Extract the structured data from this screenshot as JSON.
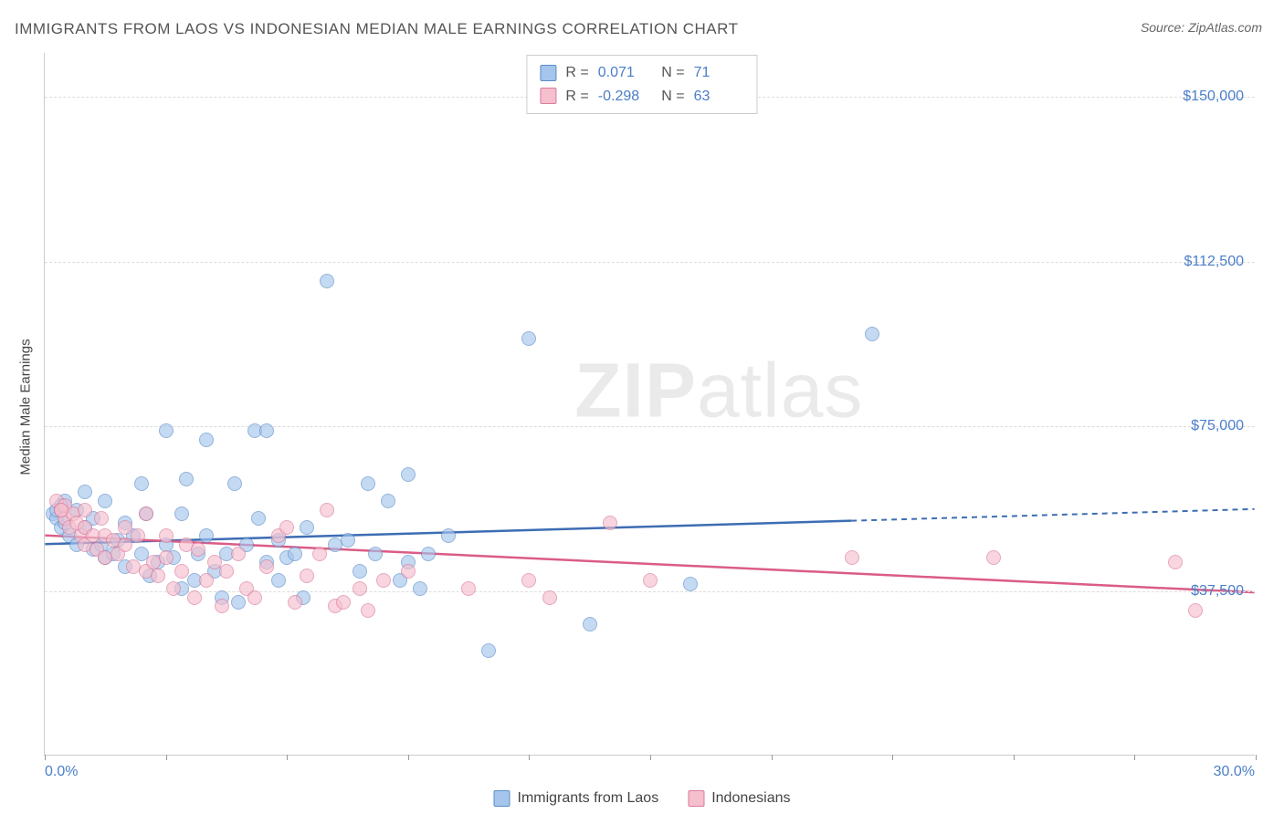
{
  "title": "IMMIGRANTS FROM LAOS VS INDONESIAN MEDIAN MALE EARNINGS CORRELATION CHART",
  "source": "Source: ZipAtlas.com",
  "watermark": {
    "part1": "ZIP",
    "part2": "atlas"
  },
  "chart": {
    "type": "scatter",
    "ylabel": "Median Male Earnings",
    "xlim": [
      0,
      30
    ],
    "ylim": [
      0,
      160000
    ],
    "x_axis_labels": {
      "min": "0.0%",
      "max": "30.0%"
    },
    "y_gridlines": [
      {
        "value": 37500,
        "label": "$37,500"
      },
      {
        "value": 75000,
        "label": "$75,000"
      },
      {
        "value": 112500,
        "label": "$112,500"
      },
      {
        "value": 150000,
        "label": "$150,000"
      }
    ],
    "x_ticks_pct": [
      0,
      3,
      6,
      9,
      12,
      15,
      18,
      21,
      24,
      27,
      30
    ],
    "colors": {
      "blue_fill": "#a5c5ec",
      "blue_stroke": "#5c8cc9",
      "pink_fill": "#f5bfce",
      "pink_stroke": "#db7a9a",
      "grid": "#dddddd",
      "axis": "#cccccc",
      "label_blue": "#4a7ec9",
      "text": "#555555",
      "trend_blue": "#3d6db3",
      "trend_pink": "#db5c86"
    },
    "series": [
      {
        "name": "Immigrants from Laos",
        "color_key": "blue",
        "R": "0.071",
        "N": "71",
        "trend": {
          "y_at_x0": 48000,
          "y_at_x30": 56000,
          "solid_until_x": 20
        },
        "points": [
          [
            0.2,
            55000
          ],
          [
            0.3,
            54000
          ],
          [
            0.4,
            52000
          ],
          [
            0.5,
            58000
          ],
          [
            0.5,
            53000
          ],
          [
            0.6,
            50000
          ],
          [
            0.8,
            56000
          ],
          [
            0.8,
            48000
          ],
          [
            1.0,
            60000
          ],
          [
            1.0,
            52000
          ],
          [
            1.2,
            47000
          ],
          [
            1.2,
            54000
          ],
          [
            1.4,
            48000
          ],
          [
            1.5,
            58000
          ],
          [
            1.5,
            45000
          ],
          [
            1.7,
            46000
          ],
          [
            1.8,
            49000
          ],
          [
            2.0,
            43000
          ],
          [
            2.0,
            53000
          ],
          [
            2.2,
            50000
          ],
          [
            2.4,
            46000
          ],
          [
            2.4,
            62000
          ],
          [
            2.5,
            55000
          ],
          [
            2.6,
            41000
          ],
          [
            2.8,
            44000
          ],
          [
            3.0,
            48000
          ],
          [
            3.0,
            74000
          ],
          [
            3.2,
            45000
          ],
          [
            3.4,
            55000
          ],
          [
            3.4,
            38000
          ],
          [
            3.5,
            63000
          ],
          [
            3.7,
            40000
          ],
          [
            3.8,
            46000
          ],
          [
            4.0,
            50000
          ],
          [
            4.0,
            72000
          ],
          [
            4.2,
            42000
          ],
          [
            4.4,
            36000
          ],
          [
            4.5,
            46000
          ],
          [
            4.7,
            62000
          ],
          [
            4.8,
            35000
          ],
          [
            5.0,
            48000
          ],
          [
            5.2,
            74000
          ],
          [
            5.3,
            54000
          ],
          [
            5.5,
            44000
          ],
          [
            5.5,
            74000
          ],
          [
            5.8,
            40000
          ],
          [
            5.8,
            49000
          ],
          [
            6.0,
            45000
          ],
          [
            6.2,
            46000
          ],
          [
            6.4,
            36000
          ],
          [
            6.5,
            52000
          ],
          [
            7.0,
            108000
          ],
          [
            7.2,
            48000
          ],
          [
            7.5,
            49000
          ],
          [
            7.8,
            42000
          ],
          [
            8.0,
            62000
          ],
          [
            8.2,
            46000
          ],
          [
            8.5,
            58000
          ],
          [
            8.8,
            40000
          ],
          [
            9.0,
            64000
          ],
          [
            9.0,
            44000
          ],
          [
            9.3,
            38000
          ],
          [
            9.5,
            46000
          ],
          [
            10.0,
            50000
          ],
          [
            11.0,
            24000
          ],
          [
            12.0,
            95000
          ],
          [
            13.5,
            30000
          ],
          [
            16.0,
            39000
          ],
          [
            20.5,
            96000
          ],
          [
            0.3,
            56000
          ],
          [
            0.4,
            57000
          ]
        ]
      },
      {
        "name": "Indonesians",
        "color_key": "pink",
        "R": "-0.298",
        "N": "63",
        "trend": {
          "y_at_x0": 50000,
          "y_at_x30": 37000,
          "solid_until_x": 30
        },
        "points": [
          [
            0.3,
            58000
          ],
          [
            0.4,
            56000
          ],
          [
            0.5,
            54000
          ],
          [
            0.5,
            57000
          ],
          [
            0.6,
            52000
          ],
          [
            0.7,
            55000
          ],
          [
            0.8,
            53000
          ],
          [
            0.9,
            50000
          ],
          [
            1.0,
            56000
          ],
          [
            1.0,
            52000
          ],
          [
            1.0,
            48000
          ],
          [
            1.2,
            50000
          ],
          [
            1.3,
            47000
          ],
          [
            1.4,
            54000
          ],
          [
            1.5,
            50000
          ],
          [
            1.5,
            45000
          ],
          [
            1.7,
            49000
          ],
          [
            1.8,
            46000
          ],
          [
            2.0,
            48000
          ],
          [
            2.0,
            52000
          ],
          [
            2.2,
            43000
          ],
          [
            2.3,
            50000
          ],
          [
            2.5,
            42000
          ],
          [
            2.5,
            55000
          ],
          [
            2.7,
            44000
          ],
          [
            2.8,
            41000
          ],
          [
            3.0,
            45000
          ],
          [
            3.0,
            50000
          ],
          [
            3.2,
            38000
          ],
          [
            3.4,
            42000
          ],
          [
            3.5,
            48000
          ],
          [
            3.7,
            36000
          ],
          [
            3.8,
            47000
          ],
          [
            4.0,
            40000
          ],
          [
            4.2,
            44000
          ],
          [
            4.4,
            34000
          ],
          [
            4.5,
            42000
          ],
          [
            4.8,
            46000
          ],
          [
            5.0,
            38000
          ],
          [
            5.2,
            36000
          ],
          [
            5.5,
            43000
          ],
          [
            5.8,
            50000
          ],
          [
            6.0,
            52000
          ],
          [
            6.2,
            35000
          ],
          [
            6.5,
            41000
          ],
          [
            6.8,
            46000
          ],
          [
            7.0,
            56000
          ],
          [
            7.2,
            34000
          ],
          [
            7.4,
            35000
          ],
          [
            7.8,
            38000
          ],
          [
            8.0,
            33000
          ],
          [
            8.4,
            40000
          ],
          [
            9.0,
            42000
          ],
          [
            10.5,
            38000
          ],
          [
            12.0,
            40000
          ],
          [
            12.5,
            36000
          ],
          [
            14.0,
            53000
          ],
          [
            15.0,
            40000
          ],
          [
            20.0,
            45000
          ],
          [
            23.5,
            45000
          ],
          [
            28.0,
            44000
          ],
          [
            28.5,
            33000
          ],
          [
            0.4,
            56000
          ]
        ]
      }
    ],
    "legend_bottom": [
      {
        "swatch": "blue",
        "label": "Immigrants from Laos"
      },
      {
        "swatch": "pink",
        "label": "Indonesians"
      }
    ]
  }
}
